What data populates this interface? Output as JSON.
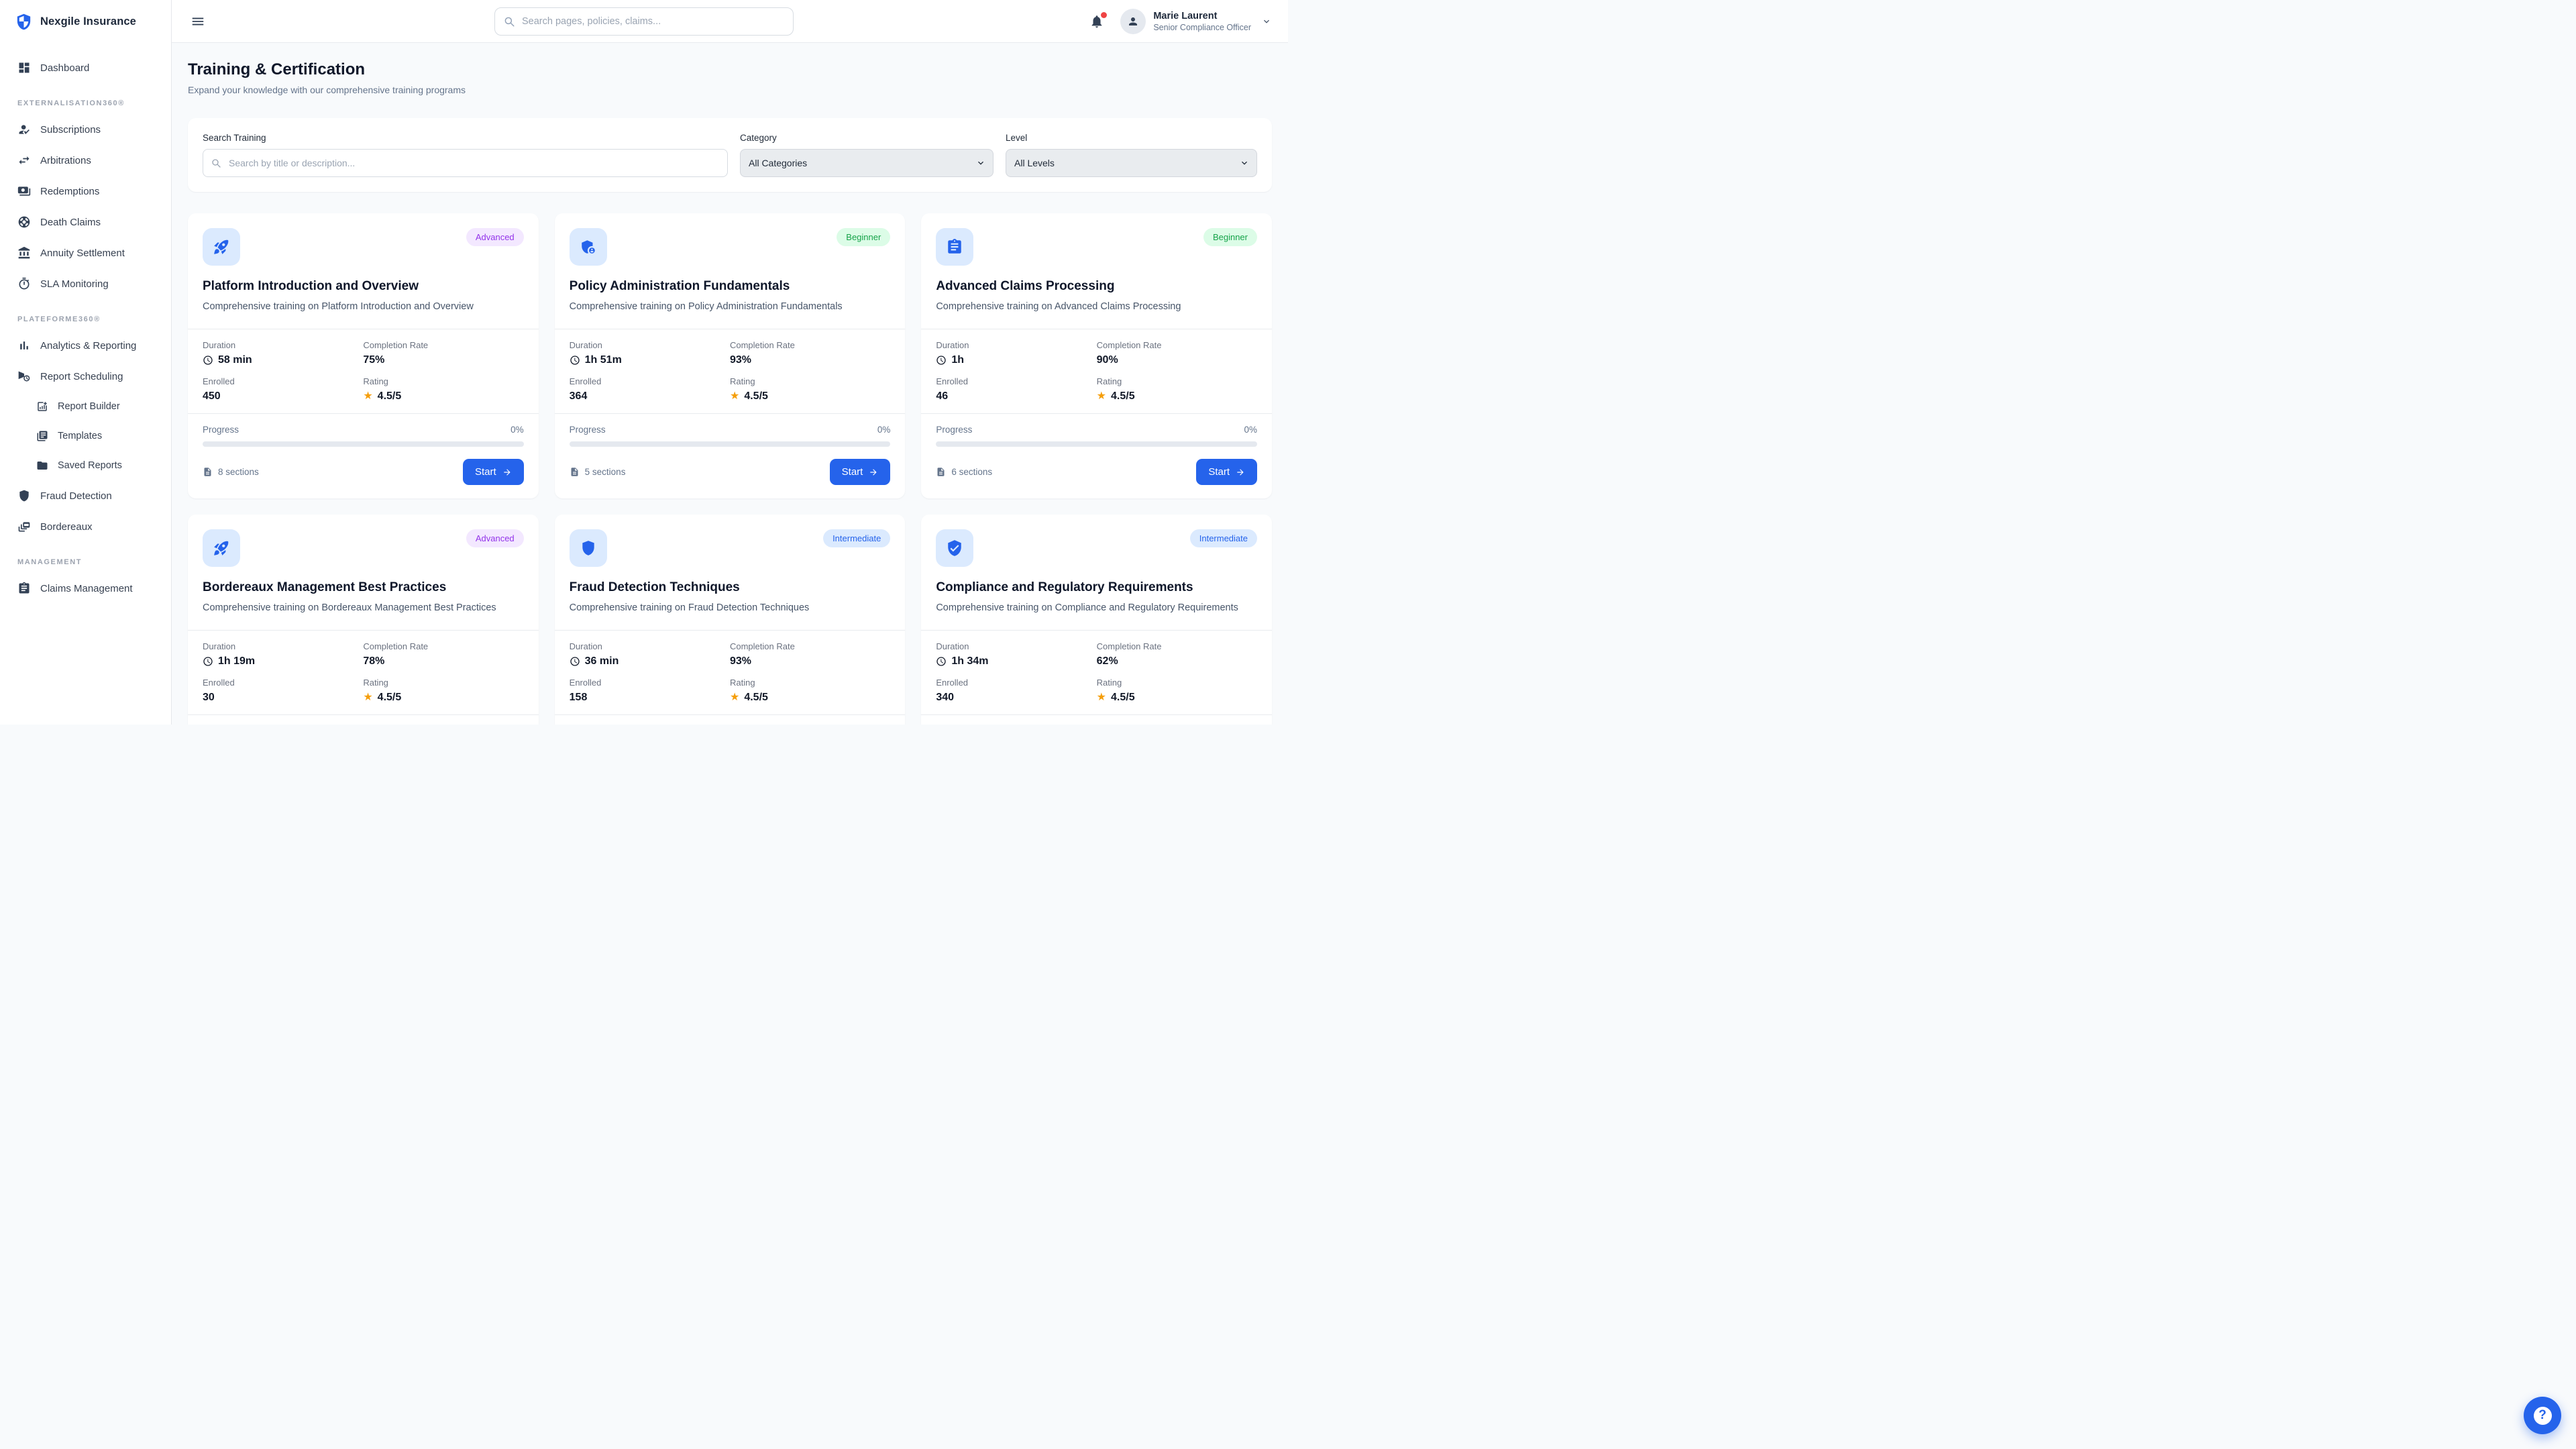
{
  "brand": {
    "name": "Nexgile Insurance",
    "logo_icon": "shield-logo-icon"
  },
  "header": {
    "menu_icon": "hamburger-icon",
    "search_placeholder": "Search pages, policies, claims...",
    "notifications_icon": "bell-icon",
    "user": {
      "name": "Marie Laurent",
      "role": "Senior Compliance Officer"
    }
  },
  "sidebar": {
    "items": [
      {
        "label": "Dashboard",
        "icon": "dashboard-icon"
      },
      {
        "section": "EXTERNALISATION360®"
      },
      {
        "label": "Subscriptions",
        "icon": "subscriptions-icon"
      },
      {
        "label": "Arbitrations",
        "icon": "arbitrations-icon"
      },
      {
        "label": "Redemptions",
        "icon": "redemptions-icon"
      },
      {
        "label": "Death Claims",
        "icon": "death-claims-icon"
      },
      {
        "label": "Annuity Settlement",
        "icon": "annuity-icon"
      },
      {
        "label": "SLA Monitoring",
        "icon": "sla-icon"
      },
      {
        "section": "PLATEFORME360®"
      },
      {
        "label": "Analytics & Reporting",
        "icon": "analytics-icon"
      },
      {
        "label": "Report Scheduling",
        "icon": "report-scheduling-icon"
      },
      {
        "label": "Report Builder",
        "icon": "report-builder-icon",
        "child": true
      },
      {
        "label": "Templates",
        "icon": "templates-icon",
        "child": true
      },
      {
        "label": "Saved Reports",
        "icon": "saved-reports-icon",
        "child": true
      },
      {
        "label": "Fraud Detection",
        "icon": "fraud-icon"
      },
      {
        "label": "Bordereaux",
        "icon": "bordereaux-icon"
      },
      {
        "section": "MANAGEMENT"
      },
      {
        "label": "Claims Management",
        "icon": "claims-icon"
      }
    ]
  },
  "page": {
    "title": "Training & Certification",
    "subtitle": "Expand your knowledge with our comprehensive training programs",
    "help_glyph": "?"
  },
  "filters": {
    "search_label": "Search Training",
    "search_placeholder": "Search by title or description...",
    "category_label": "Category",
    "category_value": "All Categories",
    "level_label": "Level",
    "level_value": "All Levels"
  },
  "labels": {
    "duration": "Duration",
    "completion": "Completion Rate",
    "enrolled": "Enrolled",
    "rating": "Rating",
    "progress": "Progress",
    "start": "Start",
    "star": "★"
  },
  "colors": {
    "primary": "#2563eb",
    "icon_tile_bg": "#dbeafe",
    "advanced_bg": "#f3e8ff",
    "advanced_text": "#9333ea",
    "beginner_bg": "#dcfce7",
    "beginner_text": "#16a34a",
    "intermediate_bg": "#dbeafe",
    "intermediate_text": "#2563eb",
    "star": "#f59e0b",
    "notification_dot": "#ef4444"
  },
  "cards": [
    {
      "icon": "rocket-icon",
      "level": "Advanced",
      "level_class": "advanced",
      "title": "Platform Introduction and Overview",
      "description": "Comprehensive training on Platform Introduction and Overview",
      "duration": "58 min",
      "completion": "75%",
      "enrolled": "450",
      "rating": "4.5/5",
      "progress": "0%",
      "progress_value": 0,
      "sections": "8 sections"
    },
    {
      "icon": "policy-admin-icon",
      "level": "Beginner",
      "level_class": "beginner",
      "title": "Policy Administration Fundamentals",
      "description": "Comprehensive training on Policy Administration Fundamentals",
      "duration": "1h 51m",
      "completion": "93%",
      "enrolled": "364",
      "rating": "4.5/5",
      "progress": "0%",
      "progress_value": 0,
      "sections": "5 sections"
    },
    {
      "icon": "clipboard-icon",
      "level": "Beginner",
      "level_class": "beginner",
      "title": "Advanced Claims Processing",
      "description": "Comprehensive training on Advanced Claims Processing",
      "duration": "1h",
      "completion": "90%",
      "enrolled": "46",
      "rating": "4.5/5",
      "progress": "0%",
      "progress_value": 0,
      "sections": "6 sections"
    },
    {
      "icon": "rocket-icon",
      "level": "Advanced",
      "level_class": "advanced",
      "title": "Bordereaux Management Best Practices",
      "description": "Comprehensive training on Bordereaux Management Best Practices",
      "duration": "1h 19m",
      "completion": "78%",
      "enrolled": "30",
      "rating": "4.5/5",
      "progress": "",
      "progress_value": 0,
      "sections": ""
    },
    {
      "icon": "shield-icon",
      "level": "Intermediate",
      "level_class": "intermediate",
      "title": "Fraud Detection Techniques",
      "description": "Comprehensive training on Fraud Detection Techniques",
      "duration": "36 min",
      "completion": "93%",
      "enrolled": "158",
      "rating": "4.5/5",
      "progress": "",
      "progress_value": 0,
      "sections": ""
    },
    {
      "icon": "verified-icon",
      "level": "Intermediate",
      "level_class": "intermediate",
      "title": "Compliance and Regulatory Requirements",
      "description": "Comprehensive training on Compliance and Regulatory Requirements",
      "duration": "1h 34m",
      "completion": "62%",
      "enrolled": "340",
      "rating": "4.5/5",
      "progress": "",
      "progress_value": 0,
      "sections": ""
    }
  ]
}
